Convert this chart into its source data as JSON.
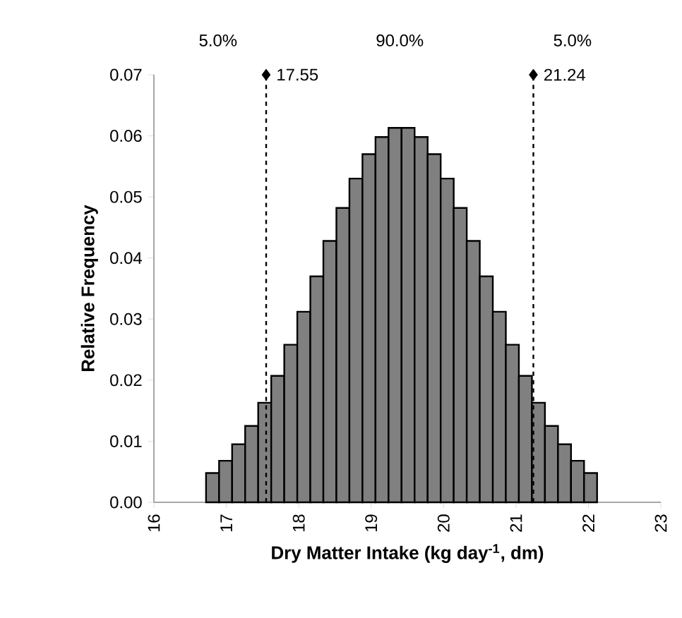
{
  "chart_data": {
    "type": "histogram",
    "xlabel": "Dry Matter Intake (kg day$^{-1}$, dm)",
    "ylabel": "Relative Frequency",
    "bins": [
      16.72,
      16.9,
      17.08,
      17.26,
      17.44,
      17.62,
      17.8,
      17.98,
      18.16,
      18.34,
      18.52,
      18.7,
      18.88,
      19.06,
      19.24,
      19.42,
      19.6,
      19.78,
      19.96,
      20.14,
      20.32,
      20.5,
      20.68,
      20.86,
      21.04,
      21.22,
      21.4,
      21.58,
      21.76,
      21.94,
      22.12
    ],
    "values": [
      0.0048,
      0.0068,
      0.0095,
      0.0125,
      0.0163,
      0.0207,
      0.0258,
      0.0312,
      0.037,
      0.0428,
      0.0482,
      0.053,
      0.057,
      0.0598,
      0.0613,
      0.0613,
      0.0598,
      0.057,
      0.053,
      0.0482,
      0.0428,
      0.037,
      0.0312,
      0.0258,
      0.0207,
      0.0163,
      0.0125,
      0.0095,
      0.0068,
      0.0048
    ],
    "color": "#808080",
    "xlim": [
      16,
      23
    ],
    "xticks": [
      16,
      17,
      18,
      19,
      20,
      21,
      22,
      23
    ],
    "ylim": [
      0,
      0.07
    ],
    "yticks": [
      {
        "value": 0,
        "label": "0.00"
      },
      {
        "value": 0.01,
        "label": "0.01"
      },
      {
        "value": 0.02,
        "label": "0.02"
      },
      {
        "value": 0.03,
        "label": "0.03"
      },
      {
        "value": 0.04,
        "label": "0.04"
      },
      {
        "value": 0.05,
        "label": "0.05"
      },
      {
        "value": 0.06,
        "label": "0.06"
      },
      {
        "value": 0.07,
        "label": "0.07"
      }
    ],
    "ref_lines": [
      {
        "axis": "x",
        "value": 17.55,
        "label": "17.55",
        "line_style": "dashed"
      },
      {
        "axis": "x",
        "value": 21.24,
        "label": "21.24",
        "line_style": "dashed"
      }
    ],
    "series": [
      {
        "type": "scatter",
        "x": [
          17.55,
          21.24
        ],
        "values": [
          0.07,
          0.07
        ],
        "color": "#000000",
        "marker": "diamond"
      }
    ],
    "annotations": [
      "5.0%",
      "90.0%",
      "5.0%"
    ],
    "grid": false
  }
}
